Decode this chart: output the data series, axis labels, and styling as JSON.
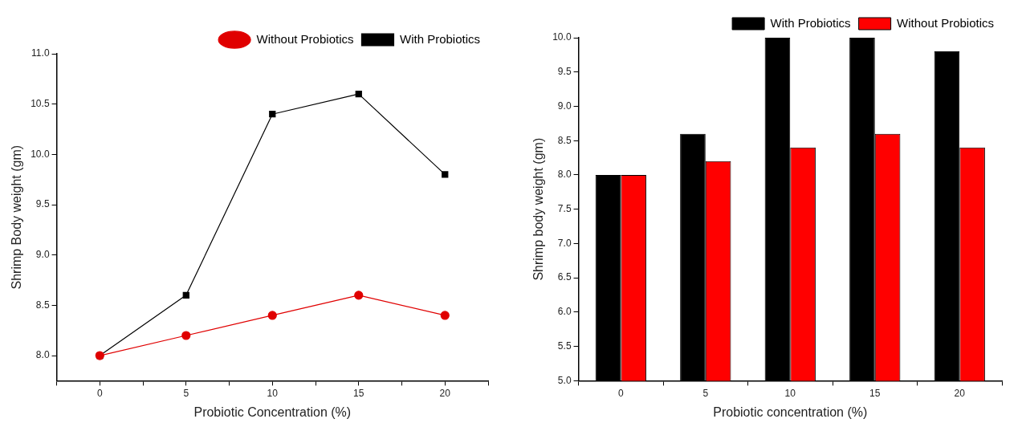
{
  "chart_data": [
    {
      "type": "line",
      "xlabel": "Probiotic Concentration (%)",
      "ylabel": "Shrimp Body weight (gm)",
      "x": [
        0,
        5,
        10,
        15,
        20
      ],
      "xlim": [
        -2.5,
        22.5
      ],
      "xticks": [
        {
          "value": -2.5,
          "label": null
        },
        0,
        {
          "value": 2.5,
          "label": null
        },
        5,
        {
          "value": 7.5,
          "label": null
        },
        10,
        {
          "value": 12.5,
          "label": null
        },
        15,
        {
          "value": 17.5,
          "label": null
        },
        20,
        {
          "value": 22.5,
          "label": null
        }
      ],
      "ylim": [
        7.75,
        11
      ],
      "yticks": [
        {
          "value": 8,
          "label": "8.0"
        },
        {
          "value": 8.5,
          "label": "8.5"
        },
        {
          "value": 9,
          "label": "9.0"
        },
        {
          "value": 9.5,
          "label": "9.5"
        },
        {
          "value": 10,
          "label": "10.0"
        },
        {
          "value": 10.5,
          "label": "10.5"
        },
        {
          "value": 11,
          "label": "11.0"
        }
      ],
      "grid": false,
      "legend": "top right",
      "line_style": "solid",
      "series": [
        {
          "name": "With Probiotics",
          "color": "#000000",
          "marker": "square",
          "values": [
            8,
            8.6,
            10.4,
            10.6,
            9.8
          ]
        },
        {
          "name": "Without Probiotics",
          "color": "#e00000",
          "marker": "circle",
          "values": [
            8,
            8.2,
            8.4,
            8.6,
            8.4
          ]
        }
      ]
    },
    {
      "type": "bar",
      "xlabel": "Probiotic concentration (%)",
      "ylabel": "Shrimp body weight (gm)",
      "categories": [
        "0",
        "5",
        "10",
        "15",
        "20"
      ],
      "ylim": [
        5,
        10
      ],
      "yticks": [
        {
          "value": 5,
          "label": "5.0"
        },
        {
          "value": 5.5,
          "label": "5.5"
        },
        {
          "value": 6,
          "label": "6.0"
        },
        {
          "value": 6.5,
          "label": "6.5"
        },
        {
          "value": 7,
          "label": "7.0"
        },
        {
          "value": 7.5,
          "label": "7.5"
        },
        {
          "value": 8,
          "label": "8.0"
        },
        {
          "value": 8.5,
          "label": "8.5"
        },
        {
          "value": 9,
          "label": "9.0"
        },
        {
          "value": 9.5,
          "label": "9.5"
        },
        {
          "value": 10,
          "label": "10.0"
        }
      ],
      "grid": false,
      "legend": "top right",
      "series": [
        {
          "name": "With Probiotics",
          "color": "#000000",
          "values": [
            8,
            8.6,
            10,
            10,
            9.8
          ]
        },
        {
          "name": "Without Probiotics",
          "color": "#ff0000",
          "values": [
            8,
            8.2,
            8.4,
            8.6,
            8.4
          ]
        }
      ]
    }
  ]
}
